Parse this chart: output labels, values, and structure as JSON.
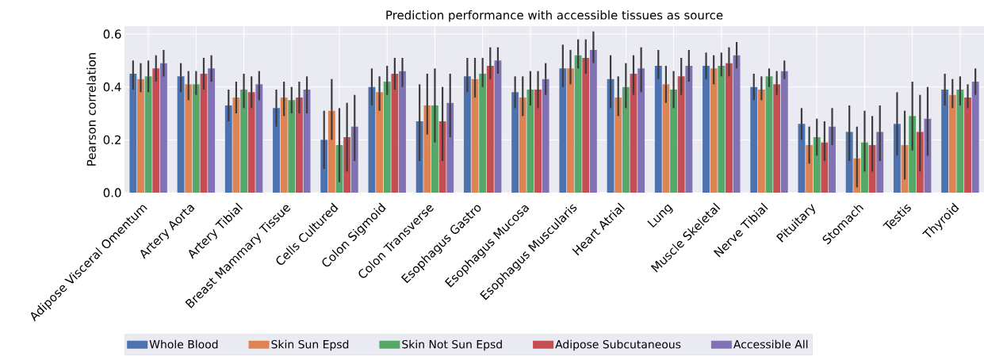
{
  "chart_data": {
    "type": "bar",
    "title": "Prediction performance with accessible tissues as source",
    "ylabel": "Pearson correlation",
    "categories": [
      "Adipose Visceral Omentum",
      "Artery Aorta",
      "Artery Tibial",
      "Breast Mammary Tissue",
      "Cells Cultured",
      "Colon Sigmoid",
      "Colon Transverse",
      "Esophagus Gastro",
      "Esophagus Mucosa",
      "Esophagus Muscularis",
      "Heart Atrial",
      "Lung",
      "Muscle Skeletal",
      "Nerve Tibial",
      "Pituitary",
      "Stomach",
      "Testis",
      "Thyroid"
    ],
    "series": [
      {
        "name": "Whole Blood",
        "color": "#4c72b0",
        "values": [
          0.45,
          0.44,
          0.33,
          0.32,
          0.2,
          0.4,
          0.27,
          0.44,
          0.38,
          0.47,
          0.43,
          0.48,
          0.48,
          0.4,
          0.26,
          0.23,
          0.26,
          0.39
        ],
        "errors": [
          [
            0.39,
            0.5
          ],
          [
            0.38,
            0.49
          ],
          [
            0.27,
            0.39
          ],
          [
            0.25,
            0.39
          ],
          [
            0.09,
            0.31
          ],
          [
            0.33,
            0.47
          ],
          [
            0.12,
            0.41
          ],
          [
            0.38,
            0.51
          ],
          [
            0.32,
            0.44
          ],
          [
            0.4,
            0.56
          ],
          [
            0.32,
            0.52
          ],
          [
            0.43,
            0.54
          ],
          [
            0.43,
            0.53
          ],
          [
            0.35,
            0.45
          ],
          [
            0.2,
            0.32
          ],
          [
            0.12,
            0.33
          ],
          [
            0.14,
            0.38
          ],
          [
            0.33,
            0.45
          ]
        ]
      },
      {
        "name": "Skin Sun Epsd",
        "color": "#dd8452",
        "values": [
          0.43,
          0.41,
          0.36,
          0.36,
          0.31,
          0.38,
          0.33,
          0.43,
          0.36,
          0.47,
          0.36,
          0.41,
          0.47,
          0.39,
          0.18,
          0.13,
          0.18,
          0.37
        ],
        "errors": [
          [
            0.38,
            0.49
          ],
          [
            0.35,
            0.46
          ],
          [
            0.3,
            0.42
          ],
          [
            0.29,
            0.42
          ],
          [
            0.2,
            0.43
          ],
          [
            0.31,
            0.44
          ],
          [
            0.22,
            0.45
          ],
          [
            0.36,
            0.51
          ],
          [
            0.29,
            0.44
          ],
          [
            0.41,
            0.54
          ],
          [
            0.29,
            0.44
          ],
          [
            0.34,
            0.48
          ],
          [
            0.41,
            0.52
          ],
          [
            0.35,
            0.44
          ],
          [
            0.11,
            0.25
          ],
          [
            0.02,
            0.25
          ],
          [
            0.05,
            0.31
          ],
          [
            0.32,
            0.43
          ]
        ]
      },
      {
        "name": "Skin Not Sun Epsd",
        "color": "#55a868",
        "values": [
          0.44,
          0.41,
          0.39,
          0.35,
          0.18,
          0.42,
          0.33,
          0.45,
          0.39,
          0.52,
          0.4,
          0.39,
          0.48,
          0.44,
          0.21,
          0.19,
          0.29,
          0.39
        ],
        "errors": [
          [
            0.38,
            0.5
          ],
          [
            0.37,
            0.46
          ],
          [
            0.32,
            0.45
          ],
          [
            0.3,
            0.4
          ],
          [
            0.04,
            0.32
          ],
          [
            0.37,
            0.48
          ],
          [
            0.19,
            0.47
          ],
          [
            0.4,
            0.51
          ],
          [
            0.33,
            0.46
          ],
          [
            0.47,
            0.58
          ],
          [
            0.32,
            0.49
          ],
          [
            0.32,
            0.46
          ],
          [
            0.44,
            0.53
          ],
          [
            0.4,
            0.47
          ],
          [
            0.14,
            0.28
          ],
          [
            0.08,
            0.31
          ],
          [
            0.16,
            0.42
          ],
          [
            0.33,
            0.44
          ]
        ]
      },
      {
        "name": "Adipose Subcutaneous",
        "color": "#c44e52",
        "values": [
          0.47,
          0.45,
          0.38,
          0.36,
          0.21,
          0.45,
          0.27,
          0.48,
          0.39,
          0.51,
          0.45,
          0.44,
          0.49,
          0.41,
          0.19,
          0.18,
          0.23,
          0.36
        ],
        "errors": [
          [
            0.42,
            0.52
          ],
          [
            0.39,
            0.51
          ],
          [
            0.32,
            0.44
          ],
          [
            0.3,
            0.42
          ],
          [
            0.08,
            0.34
          ],
          [
            0.39,
            0.51
          ],
          [
            0.12,
            0.4
          ],
          [
            0.43,
            0.55
          ],
          [
            0.32,
            0.46
          ],
          [
            0.45,
            0.58
          ],
          [
            0.37,
            0.52
          ],
          [
            0.37,
            0.51
          ],
          [
            0.44,
            0.55
          ],
          [
            0.37,
            0.46
          ],
          [
            0.12,
            0.27
          ],
          [
            0.08,
            0.29
          ],
          [
            0.08,
            0.37
          ],
          [
            0.32,
            0.41
          ]
        ]
      },
      {
        "name": "Accessible All",
        "color": "#8172b3",
        "values": [
          0.49,
          0.47,
          0.41,
          0.39,
          0.25,
          0.46,
          0.34,
          0.5,
          0.43,
          0.54,
          0.47,
          0.48,
          0.52,
          0.46,
          0.25,
          0.23,
          0.28,
          0.42
        ],
        "errors": [
          [
            0.44,
            0.54
          ],
          [
            0.42,
            0.52
          ],
          [
            0.35,
            0.46
          ],
          [
            0.3,
            0.44
          ],
          [
            0.12,
            0.37
          ],
          [
            0.4,
            0.51
          ],
          [
            0.21,
            0.45
          ],
          [
            0.45,
            0.55
          ],
          [
            0.37,
            0.49
          ],
          [
            0.49,
            0.61
          ],
          [
            0.38,
            0.55
          ],
          [
            0.42,
            0.54
          ],
          [
            0.47,
            0.57
          ],
          [
            0.43,
            0.5
          ],
          [
            0.18,
            0.32
          ],
          [
            0.12,
            0.33
          ],
          [
            0.14,
            0.4
          ],
          [
            0.37,
            0.47
          ]
        ]
      }
    ],
    "ylim": [
      0,
      0.63
    ],
    "yticks": [
      {
        "value": 0,
        "label": "0.0"
      },
      0.2,
      0.4,
      0.6
    ],
    "grid": true,
    "legend": "bottom"
  }
}
